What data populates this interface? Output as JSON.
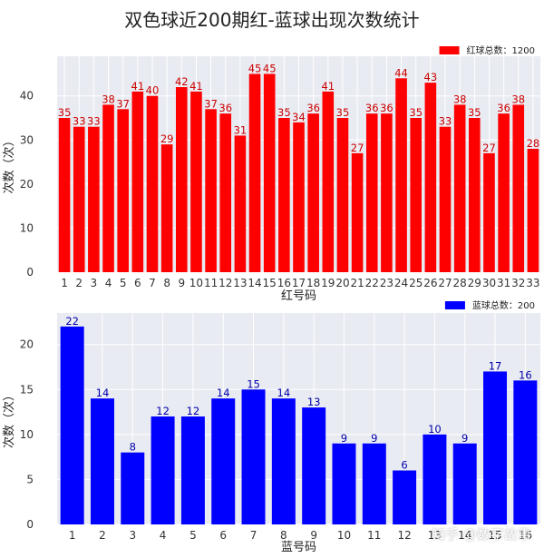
{
  "figure_title": "双色球近200期红-蓝球出现次数统计",
  "watermark": "知乎 @数字故事",
  "chart_data": [
    {
      "type": "bar",
      "categories": [
        "1",
        "2",
        "3",
        "4",
        "5",
        "6",
        "7",
        "8",
        "9",
        "10",
        "11",
        "12",
        "13",
        "14",
        "15",
        "16",
        "17",
        "18",
        "19",
        "20",
        "21",
        "22",
        "23",
        "24",
        "25",
        "26",
        "27",
        "28",
        "29",
        "30",
        "31",
        "32",
        "33"
      ],
      "values": [
        35,
        33,
        33,
        38,
        37,
        41,
        40,
        29,
        42,
        41,
        37,
        36,
        31,
        45,
        45,
        35,
        34,
        36,
        41,
        35,
        27,
        36,
        36,
        44,
        35,
        43,
        33,
        38,
        35,
        27,
        36,
        38,
        28
      ],
      "bar_color": "#ff0000",
      "label_color": "#cc0000",
      "xlabel": "红号码",
      "ylabel": "次数（次）",
      "ylim": [
        0,
        49
      ],
      "yticks": [
        0,
        10,
        20,
        30,
        40
      ],
      "legend": "红球总数：1200",
      "legend_position": "top-right",
      "grid": true
    },
    {
      "type": "bar",
      "categories": [
        "1",
        "2",
        "3",
        "4",
        "5",
        "6",
        "7",
        "8",
        "9",
        "10",
        "11",
        "12",
        "13",
        "14",
        "15",
        "16"
      ],
      "values": [
        22,
        14,
        8,
        12,
        12,
        14,
        15,
        14,
        13,
        9,
        9,
        6,
        10,
        9,
        17,
        16
      ],
      "bar_color": "#0000ff",
      "label_color": "#0000aa",
      "xlabel": "蓝号码",
      "ylabel": "次数（次）",
      "ylim": [
        0,
        23.5
      ],
      "yticks": [
        0,
        5,
        10,
        15,
        20
      ],
      "legend": "蓝球总数：200",
      "legend_position": "top-right",
      "grid": true
    }
  ]
}
